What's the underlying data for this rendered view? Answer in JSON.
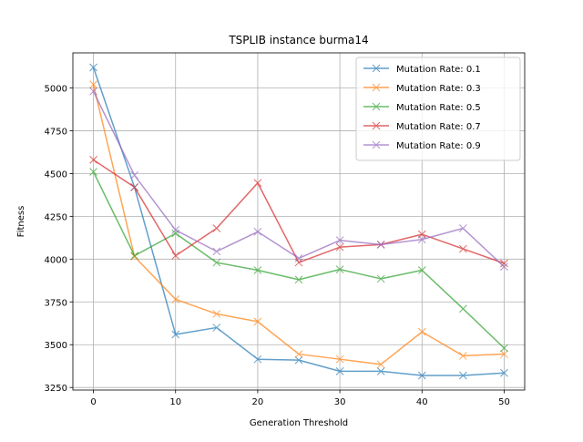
{
  "chart_data": {
    "type": "line",
    "title": "TSPLIB instance burma14",
    "xlabel": "Generation Threshold",
    "ylabel": "Fitness",
    "x": [
      0,
      5,
      10,
      15,
      20,
      25,
      30,
      35,
      40,
      45,
      50
    ],
    "xlim": [
      -2.5,
      52.5
    ],
    "ylim": [
      3235,
      5205
    ],
    "xticks": [
      0,
      10,
      20,
      30,
      40,
      50
    ],
    "yticks": [
      3250,
      3500,
      3750,
      4000,
      4250,
      4500,
      4750,
      5000
    ],
    "grid": true,
    "legend_position": "top-right",
    "marker": "x",
    "series": [
      {
        "name": "Mutation Rate: 0.1",
        "color": "#1f77b4",
        "values": [
          5120,
          4420,
          3560,
          3600,
          3415,
          3410,
          3345,
          3345,
          3320,
          3320,
          3335
        ]
      },
      {
        "name": "Mutation Rate: 0.3",
        "color": "#ff7f0e",
        "values": [
          5020,
          4015,
          3765,
          3680,
          3635,
          3445,
          3415,
          3385,
          3575,
          3435,
          3445
        ]
      },
      {
        "name": "Mutation Rate: 0.5",
        "color": "#2ca02c",
        "values": [
          4510,
          4020,
          4150,
          3980,
          3935,
          3880,
          3940,
          3885,
          3935,
          3710,
          3480
        ]
      },
      {
        "name": "Mutation Rate: 0.7",
        "color": "#d62728",
        "values": [
          4580,
          4420,
          4020,
          4180,
          4445,
          3980,
          4070,
          4085,
          4145,
          4060,
          3975
        ]
      },
      {
        "name": "Mutation Rate: 0.9",
        "color": "#9467bd",
        "values": [
          4980,
          4490,
          4170,
          4045,
          4160,
          4005,
          4110,
          4085,
          4115,
          4180,
          3955
        ]
      }
    ]
  }
}
